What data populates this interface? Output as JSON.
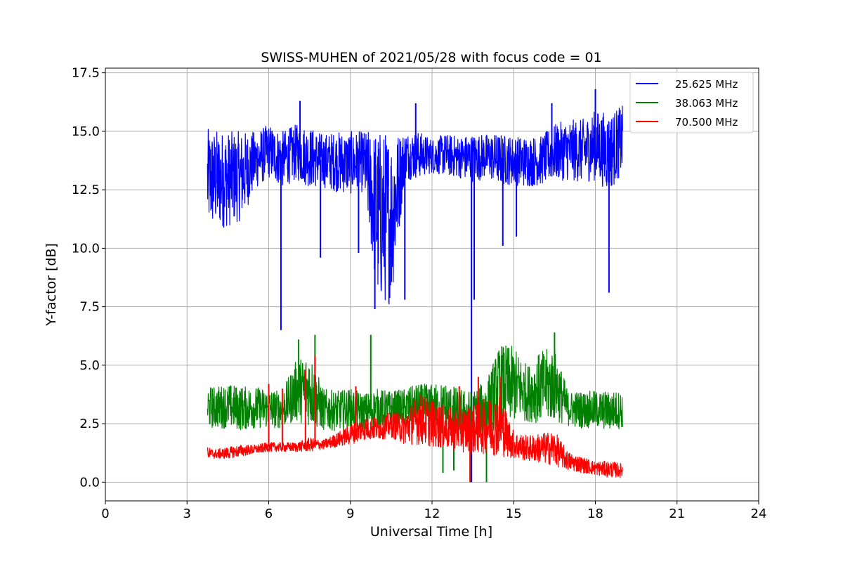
{
  "chart_data": {
    "type": "line",
    "title": "SWISS-MUHEN of 2021/05/28 with focus code = 01",
    "xlabel": "Universal Time [h]",
    "ylabel": "Y-factor [dB]",
    "xlim": [
      0,
      24
    ],
    "ylim": [
      -0.8,
      17.7
    ],
    "xticks": [
      0,
      3,
      6,
      9,
      12,
      15,
      18,
      21,
      24
    ],
    "xtick_labels": [
      "0",
      "3",
      "6",
      "9",
      "12",
      "15",
      "18",
      "21",
      "24"
    ],
    "yticks": [
      0.0,
      2.5,
      5.0,
      7.5,
      10.0,
      12.5,
      15.0,
      17.5
    ],
    "ytick_labels": [
      "0.0",
      "2.5",
      "5.0",
      "7.5",
      "10.0",
      "12.5",
      "15.0",
      "17.5"
    ],
    "grid": true,
    "legend_position": "top-right",
    "series": [
      {
        "name": "25.625 MHz",
        "color": "#0000ff",
        "x": [
          3.75,
          4.0,
          4.5,
          5.0,
          5.5,
          6.0,
          6.5,
          7.0,
          7.5,
          8.0,
          8.5,
          9.0,
          9.5,
          10.0,
          10.5,
          11.0,
          11.5,
          12.0,
          12.5,
          13.0,
          13.5,
          14.0,
          14.5,
          15.0,
          15.5,
          16.0,
          16.5,
          17.0,
          17.5,
          18.0,
          18.5,
          19.0
        ],
        "min": [
          10.8,
          10.8,
          10.9,
          11.2,
          12.5,
          13.0,
          12.6,
          12.9,
          12.6,
          12.6,
          12.4,
          12.3,
          12.4,
          7.6,
          7.6,
          12.9,
          13.0,
          13.2,
          13.1,
          13.0,
          12.8,
          13.0,
          12.7,
          12.7,
          12.6,
          12.7,
          12.9,
          12.9,
          12.8,
          12.9,
          12.4,
          13.2
        ],
        "max": [
          15.1,
          15.1,
          15.0,
          15.0,
          15.0,
          15.3,
          15.0,
          15.3,
          15.2,
          14.9,
          15.0,
          15.0,
          15.0,
          15.1,
          15.0,
          15.0,
          15.0,
          14.7,
          14.9,
          14.8,
          14.9,
          14.9,
          14.9,
          14.8,
          14.8,
          14.8,
          15.3,
          15.5,
          15.5,
          15.9,
          15.8,
          16.1
        ],
        "spikes": [
          [
            6.45,
            6.5
          ],
          [
            7.9,
            9.6
          ],
          [
            9.3,
            9.8
          ],
          [
            9.9,
            7.4
          ],
          [
            11.0,
            7.8
          ],
          [
            13.45,
            0.0
          ],
          [
            13.55,
            7.8
          ],
          [
            14.6,
            10.1
          ],
          [
            15.1,
            10.5
          ],
          [
            18.5,
            8.1
          ],
          [
            16.4,
            16.2
          ],
          [
            18.0,
            16.8
          ],
          [
            7.15,
            16.3
          ],
          [
            11.4,
            16.2
          ]
        ]
      },
      {
        "name": "38.063 MHz",
        "color": "#008000",
        "x": [
          3.75,
          4.0,
          4.5,
          5.0,
          5.5,
          6.0,
          6.5,
          7.0,
          7.5,
          8.0,
          8.5,
          9.0,
          9.5,
          10.0,
          10.5,
          11.0,
          11.5,
          12.0,
          12.5,
          13.0,
          13.5,
          14.0,
          14.5,
          15.0,
          15.5,
          16.0,
          16.5,
          17.0,
          17.5,
          18.0,
          18.5,
          19.0
        ],
        "min": [
          2.3,
          2.3,
          2.3,
          2.2,
          2.3,
          2.3,
          2.3,
          2.6,
          2.4,
          2.2,
          2.2,
          2.3,
          2.2,
          2.3,
          2.3,
          2.3,
          2.4,
          2.1,
          1.8,
          1.9,
          2.0,
          2.0,
          2.4,
          2.6,
          2.6,
          2.5,
          2.6,
          2.4,
          2.3,
          2.3,
          2.2,
          2.3
        ],
        "max": [
          4.1,
          4.1,
          4.2,
          4.1,
          4.1,
          4.0,
          3.9,
          5.2,
          5.6,
          4.0,
          3.9,
          4.0,
          3.8,
          4.0,
          3.9,
          4.0,
          4.2,
          4.2,
          4.3,
          4.0,
          3.9,
          4.4,
          5.9,
          5.8,
          5.0,
          5.6,
          5.8,
          3.9,
          3.9,
          3.9,
          3.9,
          3.9
        ],
        "spikes": [
          [
            7.1,
            6.1
          ],
          [
            7.7,
            6.3
          ],
          [
            9.75,
            6.3
          ],
          [
            16.5,
            6.4
          ],
          [
            12.4,
            0.4
          ],
          [
            13.4,
            0.0
          ],
          [
            14.0,
            0.0
          ],
          [
            12.8,
            0.5
          ]
        ]
      },
      {
        "name": "70.500 MHz",
        "color": "#ff0000",
        "x": [
          3.75,
          4.0,
          4.5,
          5.0,
          5.5,
          6.0,
          6.5,
          7.0,
          7.5,
          8.0,
          8.5,
          9.0,
          9.5,
          10.0,
          10.5,
          11.0,
          11.5,
          12.0,
          12.5,
          13.0,
          13.5,
          14.0,
          14.5,
          15.0,
          15.5,
          16.0,
          16.5,
          17.0,
          17.5,
          18.0,
          18.5,
          19.0
        ],
        "min": [
          1.0,
          1.0,
          1.0,
          1.1,
          1.2,
          1.3,
          1.3,
          1.3,
          1.3,
          1.4,
          1.5,
          1.6,
          1.8,
          1.8,
          1.9,
          1.6,
          1.6,
          1.5,
          1.4,
          1.3,
          1.2,
          1.2,
          1.1,
          1.0,
          0.9,
          0.8,
          0.7,
          0.5,
          0.4,
          0.3,
          0.2,
          0.2
        ],
        "max": [
          1.5,
          1.4,
          1.5,
          1.6,
          1.6,
          1.7,
          1.7,
          1.7,
          1.9,
          1.8,
          2.1,
          2.5,
          2.8,
          2.8,
          3.0,
          3.0,
          3.8,
          3.6,
          3.2,
          3.2,
          3.3,
          3.6,
          3.8,
          2.2,
          2.0,
          2.1,
          2.2,
          1.3,
          1.1,
          0.9,
          0.9,
          0.8
        ],
        "spikes": [
          [
            6.0,
            4.2
          ],
          [
            6.5,
            4.0
          ],
          [
            7.35,
            4.8
          ],
          [
            7.7,
            5.4
          ],
          [
            9.2,
            4.1
          ],
          [
            13.0,
            4.1
          ],
          [
            13.7,
            4.5
          ],
          [
            14.5,
            4.5
          ],
          [
            13.4,
            0.0
          ]
        ]
      }
    ]
  }
}
